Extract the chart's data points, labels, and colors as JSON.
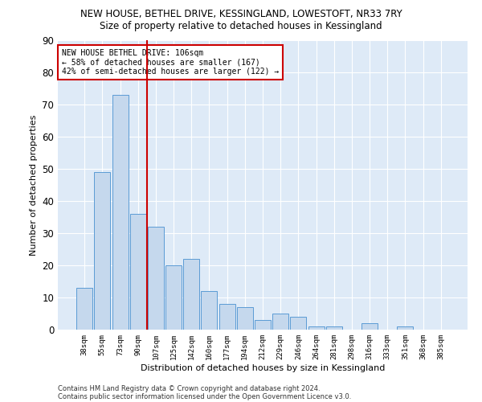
{
  "title": "NEW HOUSE, BETHEL DRIVE, KESSINGLAND, LOWESTOFT, NR33 7RY",
  "subtitle": "Size of property relative to detached houses in Kessingland",
  "xlabel": "Distribution of detached houses by size in Kessingland",
  "ylabel": "Number of detached properties",
  "categories": [
    "38sqm",
    "55sqm",
    "73sqm",
    "90sqm",
    "107sqm",
    "125sqm",
    "142sqm",
    "160sqm",
    "177sqm",
    "194sqm",
    "212sqm",
    "229sqm",
    "246sqm",
    "264sqm",
    "281sqm",
    "298sqm",
    "316sqm",
    "333sqm",
    "351sqm",
    "368sqm",
    "385sqm"
  ],
  "values": [
    13,
    49,
    73,
    36,
    32,
    20,
    22,
    12,
    8,
    7,
    3,
    5,
    4,
    1,
    1,
    0,
    2,
    0,
    1,
    0,
    0
  ],
  "bar_color": "#c5d8ed",
  "bar_edge_color": "#5b9bd5",
  "vline_x": 3.5,
  "vline_color": "#cc0000",
  "annotation_text": "NEW HOUSE BETHEL DRIVE: 106sqm\n← 58% of detached houses are smaller (167)\n42% of semi-detached houses are larger (122) →",
  "annotation_box_color": "#ffffff",
  "annotation_box_edge": "#cc0000",
  "ylim": [
    0,
    90
  ],
  "yticks": [
    0,
    10,
    20,
    30,
    40,
    50,
    60,
    70,
    80,
    90
  ],
  "background_color": "#deeaf7",
  "grid_color": "#ffffff",
  "title_fontsize": 8.5,
  "subtitle_fontsize": 8.5,
  "footer_line1": "Contains HM Land Registry data © Crown copyright and database right 2024.",
  "footer_line2": "Contains public sector information licensed under the Open Government Licence v3.0."
}
